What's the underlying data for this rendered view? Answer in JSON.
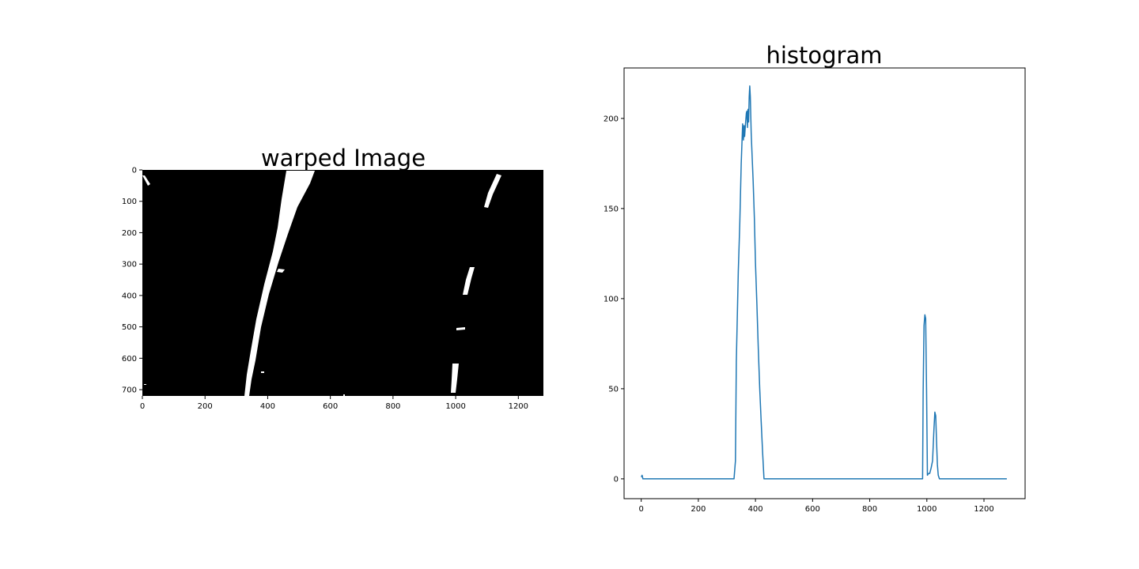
{
  "chart_data": [
    {
      "type": "image",
      "title": "warped Image",
      "xlim": [
        0,
        1280
      ],
      "ylim": [
        720,
        0
      ],
      "xticks": [
        0,
        200,
        400,
        600,
        800,
        1000,
        1200
      ],
      "yticks": [
        0,
        100,
        200,
        300,
        400,
        500,
        600,
        700
      ],
      "background_color": "#000000",
      "foreground_color": "#ffffff"
    },
    {
      "type": "line",
      "title": "histogram",
      "xlim": [
        -60,
        1344
      ],
      "ylim": [
        -11,
        228
      ],
      "xticks": [
        0,
        200,
        400,
        600,
        800,
        1000,
        1200
      ],
      "yticks": [
        0,
        50,
        100,
        150,
        200
      ],
      "grid": false,
      "line_color": "#1f77b4",
      "series": [
        {
          "x": [
            0,
            3,
            6,
            10,
            15,
            200,
            325,
            330,
            333,
            340,
            345,
            350,
            355,
            358,
            360,
            362,
            365,
            368,
            370,
            372,
            374,
            376,
            378,
            380,
            382,
            385,
            388,
            392,
            396,
            400,
            405,
            410,
            415,
            420,
            425,
            430,
            440,
            600,
            800,
            985,
            987,
            990,
            993,
            996,
            999,
            1002,
            1006,
            1010,
            1015,
            1020,
            1025,
            1028,
            1031,
            1034,
            1037,
            1040,
            1044,
            1048,
            1100,
            1280
          ],
          "y": [
            1,
            2,
            0,
            0,
            0,
            0,
            0,
            10,
            65,
            115,
            142,
            175,
            197,
            188,
            196,
            190,
            197,
            203,
            204,
            195,
            205,
            198,
            212,
            218,
            212,
            192,
            180,
            165,
            145,
            120,
            97,
            72,
            50,
            32,
            15,
            0,
            0,
            0,
            0,
            0,
            48,
            85,
            91,
            89,
            50,
            2,
            3,
            3,
            6,
            10,
            28,
            37,
            35,
            20,
            8,
            2,
            0,
            0,
            0,
            0
          ]
        }
      ]
    }
  ]
}
